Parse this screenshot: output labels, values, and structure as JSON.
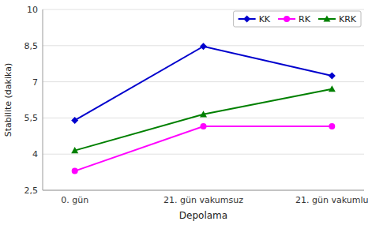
{
  "chart_data": {
    "type": "line",
    "categories": [
      "0. gün",
      "21. gün vakumsuz",
      "21. gün vakumlu"
    ],
    "series": [
      {
        "name": "KK",
        "color": "#0000CD",
        "marker": "diamond",
        "values": [
          5.4,
          8.47,
          7.25
        ]
      },
      {
        "name": "RK",
        "color": "#FF00FF",
        "marker": "circle",
        "values": [
          3.3,
          5.15,
          5.15
        ]
      },
      {
        "name": "KRK",
        "color": "#008000",
        "marker": "triangle",
        "values": [
          4.15,
          5.65,
          6.7
        ]
      }
    ],
    "xlabel": "Depolama",
    "ylabel": "Stabilite (dakika)",
    "ylim": [
      2.5,
      10
    ],
    "yticks": [
      {
        "value": 2.5,
        "label": "2,5"
      },
      4,
      {
        "value": 5.5,
        "label": "5,5"
      },
      7,
      {
        "value": 8.5,
        "label": "8,5"
      },
      10
    ],
    "grid": true,
    "legend": "upper right"
  }
}
